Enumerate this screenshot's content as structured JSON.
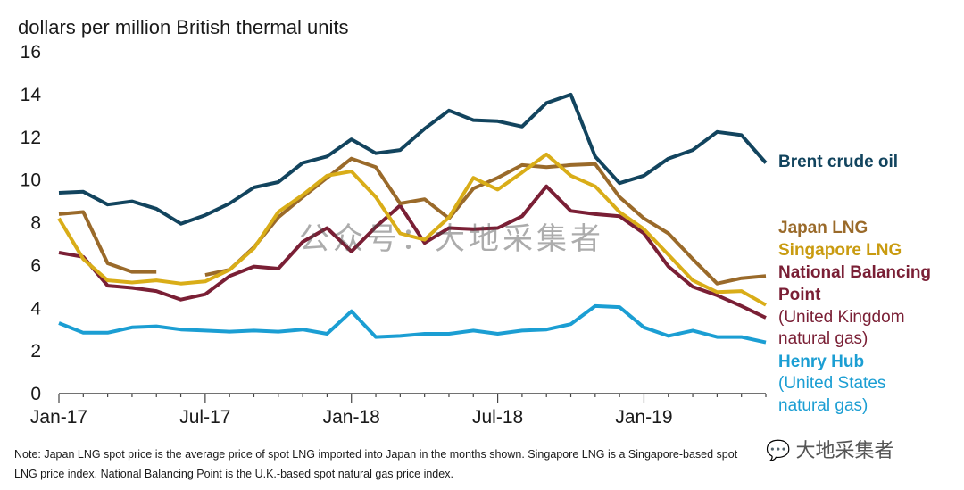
{
  "chart_data": {
    "type": "line",
    "ylabel": "dollars per million British thermal units",
    "ylim": [
      0,
      16
    ],
    "yticks": [
      0,
      2,
      4,
      6,
      8,
      10,
      12,
      14,
      16
    ],
    "x_tick_labels": [
      "Jan-17",
      "Jul-17",
      "Jan-18",
      "Jul-18",
      "Jan-19"
    ],
    "x": [
      "2017-01",
      "2017-02",
      "2017-03",
      "2017-04",
      "2017-05",
      "2017-06",
      "2017-07",
      "2017-08",
      "2017-09",
      "2017-10",
      "2017-11",
      "2017-12",
      "2018-01",
      "2018-02",
      "2018-03",
      "2018-04",
      "2018-05",
      "2018-06",
      "2018-07",
      "2018-08",
      "2018-09",
      "2018-10",
      "2018-11",
      "2018-12",
      "2019-01",
      "2019-02",
      "2019-03",
      "2019-04",
      "2019-05",
      "2019-06"
    ],
    "series": [
      {
        "name": "Brent crude oil",
        "color": "#12445e",
        "values": [
          9.4,
          9.45,
          8.85,
          9.0,
          8.65,
          7.95,
          8.35,
          8.9,
          9.65,
          9.9,
          10.8,
          11.1,
          11.9,
          11.25,
          11.4,
          12.4,
          13.25,
          12.8,
          12.75,
          12.5,
          13.6,
          14.0,
          11.1,
          9.85,
          10.2,
          11.0,
          11.4,
          12.25,
          12.1,
          10.8
        ]
      },
      {
        "name": "Japan LNG",
        "color": "#9a6a2a",
        "values": [
          8.4,
          8.5,
          6.1,
          5.7,
          5.7,
          null,
          5.55,
          5.8,
          6.85,
          8.25,
          9.2,
          10.1,
          11.0,
          10.6,
          8.9,
          9.1,
          8.2,
          9.6,
          10.1,
          10.7,
          10.6,
          10.7,
          10.75,
          9.2,
          8.2,
          7.5,
          6.3,
          5.15,
          5.4,
          5.5
        ]
      },
      {
        "name": "Singapore LNG",
        "color": "#d9ad18",
        "values": [
          8.2,
          6.3,
          5.3,
          5.2,
          5.3,
          5.15,
          5.25,
          5.8,
          6.8,
          8.5,
          9.3,
          10.2,
          10.4,
          9.2,
          7.5,
          7.2,
          8.25,
          10.1,
          9.55,
          10.35,
          11.2,
          10.2,
          9.7,
          8.5,
          7.7,
          6.5,
          5.3,
          4.75,
          4.8,
          4.15
        ]
      },
      {
        "name": "National Balancing Point",
        "color": "#7a1f35",
        "values": [
          6.6,
          6.4,
          5.05,
          4.95,
          4.8,
          4.4,
          4.65,
          5.5,
          5.95,
          5.85,
          7.1,
          7.75,
          6.65,
          7.8,
          8.8,
          7.05,
          7.75,
          7.7,
          7.75,
          8.3,
          9.7,
          8.55,
          8.4,
          8.3,
          7.5,
          5.95,
          5.0,
          4.6,
          4.1,
          3.55
        ]
      },
      {
        "name": "Henry Hub",
        "color": "#1b9ed3",
        "values": [
          3.3,
          2.85,
          2.85,
          3.1,
          3.15,
          3.0,
          2.95,
          2.9,
          2.95,
          2.9,
          3.0,
          2.8,
          3.85,
          2.65,
          2.7,
          2.8,
          2.8,
          2.95,
          2.8,
          2.95,
          3.0,
          3.25,
          4.1,
          4.05,
          3.1,
          2.7,
          2.95,
          2.65,
          2.65,
          2.4
        ]
      }
    ]
  },
  "legend": {
    "brent": "Brent crude oil",
    "japan": "Japan LNG",
    "singapore": "Singapore LNG",
    "nbp_1": "National Balancing",
    "nbp_2": "Point",
    "nbp_3": "(United Kingdom",
    "nbp_4": "natural gas)",
    "hh_1": "Henry Hub",
    "hh_2": "(United States",
    "hh_3": "natural gas)"
  },
  "note_line1": "Note: Japan LNG spot price is the average price of spot LNG imported into Japan in the months shown. Singapore LNG is a Singapore-based spot",
  "note_line2": "LNG price index. National Balancing Point is the U.K.-based spot natural gas price index.",
  "watermark": "公众号：大地采集者",
  "watermark_logo": "大地采集者"
}
